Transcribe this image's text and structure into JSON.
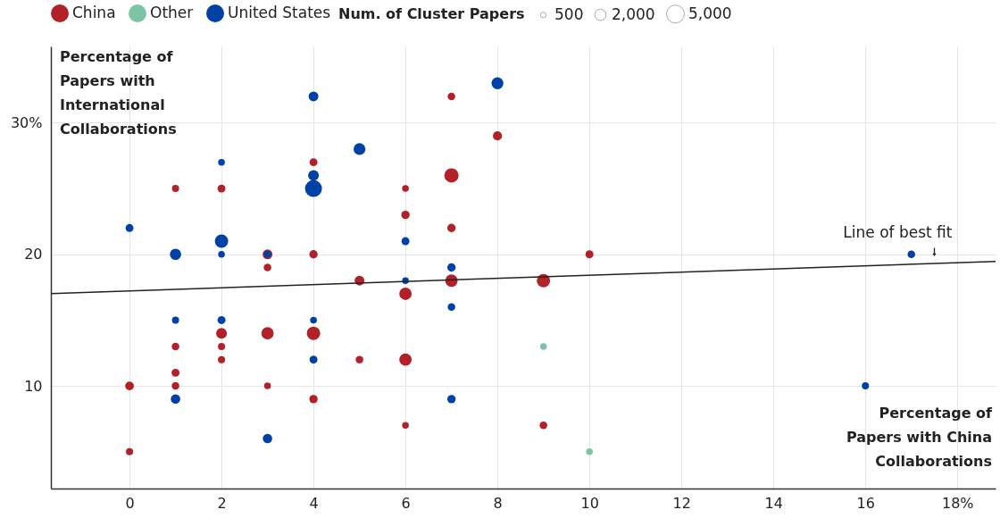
{
  "chart_data": {
    "type": "bubble",
    "xlabel": "Percentage of Papers with China Collaborations",
    "ylabel": "Percentage of Papers with International Collaborations",
    "legend_title": "Num. of Cluster Papers",
    "size_legend": [
      {
        "value": 500,
        "label": "500"
      },
      {
        "value": 2000,
        "label": "2,000"
      },
      {
        "value": 5000,
        "label": "5,000"
      }
    ],
    "legend": "top",
    "grid": true,
    "xlim": [
      -1.71,
      18.83
    ],
    "ylim": [
      2.2,
      35.8
    ],
    "xticks": [
      0,
      2,
      4,
      6,
      8,
      10,
      12,
      14,
      16,
      {
        "value": 18,
        "label": "18%"
      }
    ],
    "yticks": [
      10,
      20,
      {
        "value": 30,
        "label": "30%"
      }
    ],
    "annotations": [
      {
        "text": "Line of best fit",
        "x": 17.5,
        "y": 19.4
      }
    ],
    "series": [
      {
        "name": "China",
        "color": "#b22028",
        "x": [
          0,
          0,
          1,
          1,
          1,
          1,
          2,
          2,
          2,
          2,
          3,
          3,
          3,
          3,
          4,
          4,
          4,
          4,
          5,
          5,
          6,
          6,
          6,
          6,
          6,
          7,
          7,
          7,
          7,
          8,
          9,
          9,
          10
        ],
        "values": [
          10,
          5,
          25,
          13,
          11,
          10,
          25,
          14,
          13,
          12,
          20,
          19,
          14,
          10,
          27,
          20,
          14,
          9,
          18,
          12,
          25,
          23,
          17,
          12,
          7,
          32,
          26,
          22,
          18,
          29,
          18,
          7,
          20
        ],
        "sizes": [
          1200,
          800,
          800,
          900,
          1000,
          900,
          1000,
          1800,
          800,
          800,
          1500,
          900,
          2400,
          700,
          1000,
          1100,
          2800,
          1100,
          1500,
          900,
          700,
          1100,
          2400,
          2400,
          700,
          900,
          3200,
          1100,
          2400,
          1300,
          2800,
          900,
          1000
        ]
      },
      {
        "name": "Other",
        "color": "#7cc5a4",
        "x": [
          9,
          10
        ],
        "values": [
          13,
          5
        ],
        "sizes": [
          700,
          700
        ]
      },
      {
        "name": "United States",
        "color": "#0041a8",
        "x": [
          0,
          1,
          1,
          1,
          2,
          2,
          2,
          2,
          3,
          3,
          4,
          4,
          4,
          4,
          4,
          5,
          6,
          6,
          7,
          7,
          7,
          8,
          16,
          17
        ],
        "values": [
          22,
          20,
          15,
          9,
          27,
          21,
          20,
          15,
          20,
          6,
          32,
          26,
          25,
          15,
          12,
          28,
          21,
          18,
          19,
          16,
          9,
          33,
          10,
          20
        ],
        "sizes": [
          1000,
          2000,
          800,
          1400,
          700,
          2800,
          700,
          1000,
          800,
          1400,
          1500,
          1800,
          4500,
          700,
          1000,
          2200,
          1000,
          700,
          1100,
          900,
          1100,
          2200,
          800,
          900
        ]
      },
      {
        "type": "line",
        "color": "#222222",
        "x": [
          -1.71,
          18.83
        ],
        "values": [
          17.02,
          19.46
        ]
      }
    ]
  }
}
